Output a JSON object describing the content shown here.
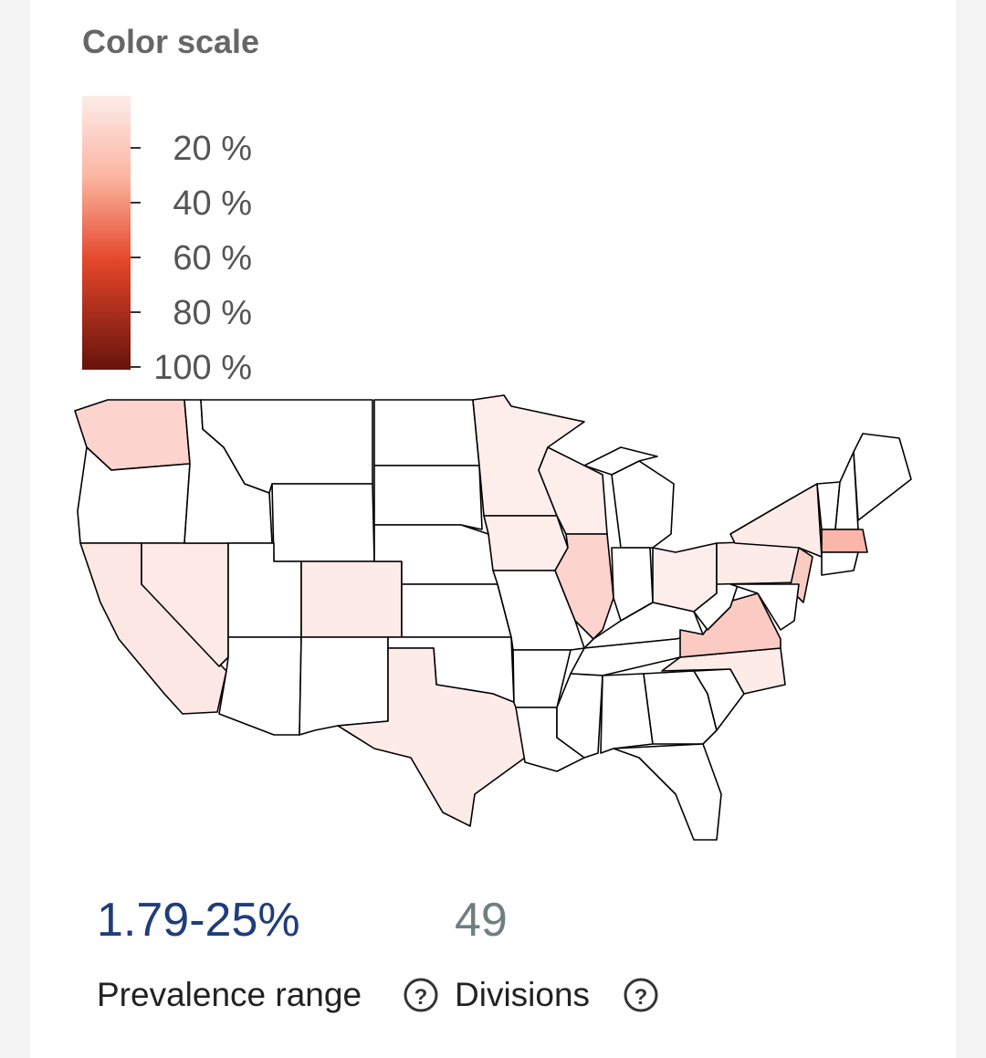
{
  "legend": {
    "title": "Color scale",
    "ticks": [
      {
        "value": 20,
        "label": "20 %"
      },
      {
        "value": 40,
        "label": "40 %"
      },
      {
        "value": 60,
        "label": "60 %"
      },
      {
        "value": 80,
        "label": "80 %"
      },
      {
        "value": 100,
        "label": "100 %"
      }
    ]
  },
  "stats": [
    {
      "value": "1.79-25%",
      "label": "Prevalence range"
    },
    {
      "value": "49",
      "label": "Divisions"
    }
  ]
}
